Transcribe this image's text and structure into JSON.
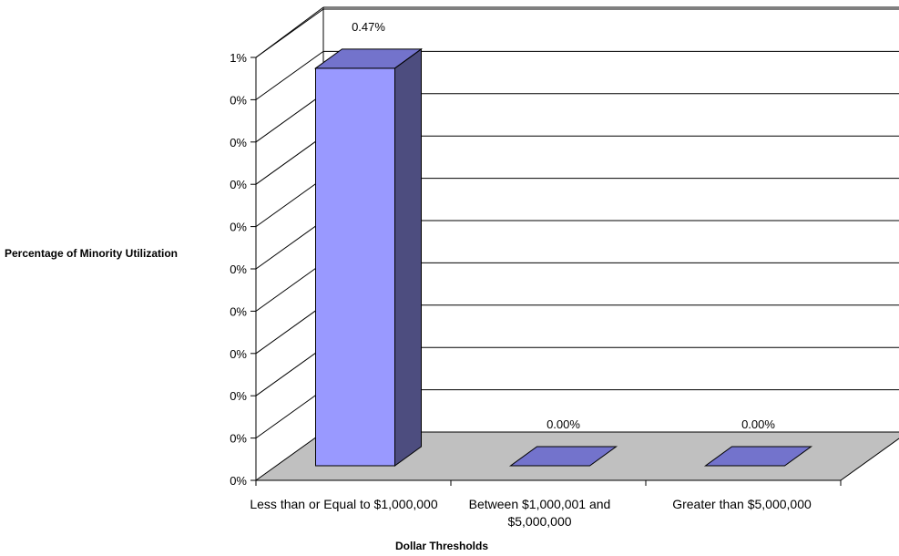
{
  "chart_data": {
    "type": "bar",
    "title": "",
    "xlabel": "Dollar Thresholds",
    "ylabel": "Percentage of Minority Utilization",
    "categories": [
      "Less than or Equal to $1,000,000",
      "Between $1,000,001 and $5,000,000",
      "Greater than $5,000,000"
    ],
    "values": [
      0.47,
      0.0,
      0.0
    ],
    "value_labels": [
      "0.47%",
      "0.00%",
      "0.00%"
    ],
    "y_tick_labels": [
      "0%",
      "0%",
      "0%",
      "0%",
      "0%",
      "0%",
      "0%",
      "0%",
      "0%",
      "0%",
      "1%"
    ],
    "ylim": [
      0,
      0.5
    ],
    "grid": true,
    "bar_front_color": "#9999FF",
    "bar_side_color": "#4D4D7F",
    "bar_top_color": "#7373CC",
    "floor_color": "#C0C0C0",
    "gridline_color": "#000000"
  }
}
